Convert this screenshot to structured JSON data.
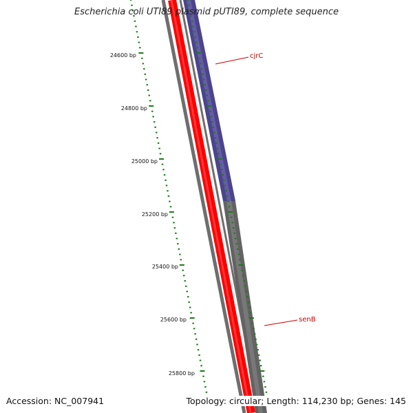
{
  "title": "Escherichia coli UTI89 plasmid pUTI89, complete sequence",
  "footer": {
    "accession": "Accession: NC_007941",
    "summary": "Topology: circular; Length: 114,230 bp; Genes: 145"
  },
  "tick_labels": [
    "24600 bp",
    "24800 bp",
    "25000 bp",
    "25200 bp",
    "25400 bp",
    "25600 bp",
    "25800 bp"
  ],
  "gene_labels": [
    "cjrC",
    "senB"
  ],
  "colors": {
    "backbone": "#ff0000",
    "backbone_outline": "#6e6e6e",
    "gene_cjrC": "#4c448c",
    "gene_senB": "#636363",
    "ticks": "#1a7a1a",
    "labels": "#cc0000"
  }
}
